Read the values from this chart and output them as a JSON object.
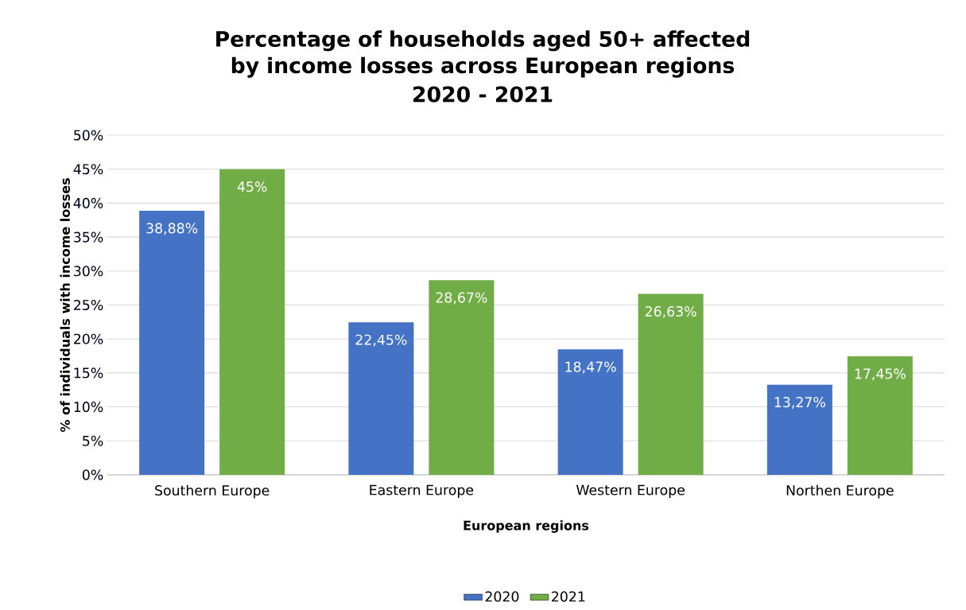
{
  "chart_data": {
    "type": "bar",
    "title": "Percentage of households aged 50+ affected by income losses across European regions",
    "subtitle": "2020 - 2021",
    "xlabel": "European regions",
    "ylabel": "% of individuals with income losses",
    "categories": [
      "Southern Europe",
      "Eastern Europe",
      "Western Europe",
      "Northen Europe"
    ],
    "series": [
      {
        "name": "2020",
        "color": "#4472c4",
        "values": [
          38.88,
          22.45,
          18.47,
          13.27
        ],
        "value_labels": [
          "38,88%",
          "22,45%",
          "18,47%",
          "13,27%"
        ]
      },
      {
        "name": "2021",
        "color": "#70ad47",
        "values": [
          45,
          28.67,
          26.63,
          17.45
        ],
        "value_labels": [
          "45%",
          "28,67%",
          "26,63%",
          "17,45%"
        ]
      }
    ],
    "ylim": [
      0,
      50
    ],
    "yticks": [
      {
        "value": 0,
        "label": "0%"
      },
      {
        "value": 5,
        "label": "5%"
      },
      {
        "value": 10,
        "label": "10%"
      },
      {
        "value": 15,
        "label": "15%"
      },
      {
        "value": 20,
        "label": "20%"
      },
      {
        "value": 25,
        "label": "25%"
      },
      {
        "value": 30,
        "label": "30%"
      },
      {
        "value": 35,
        "label": "35%"
      },
      {
        "value": 40,
        "label": "40%"
      },
      {
        "value": 45,
        "label": "45%"
      },
      {
        "value": 50,
        "label": "50%"
      }
    ],
    "grid": "y",
    "legend": "bottom"
  }
}
